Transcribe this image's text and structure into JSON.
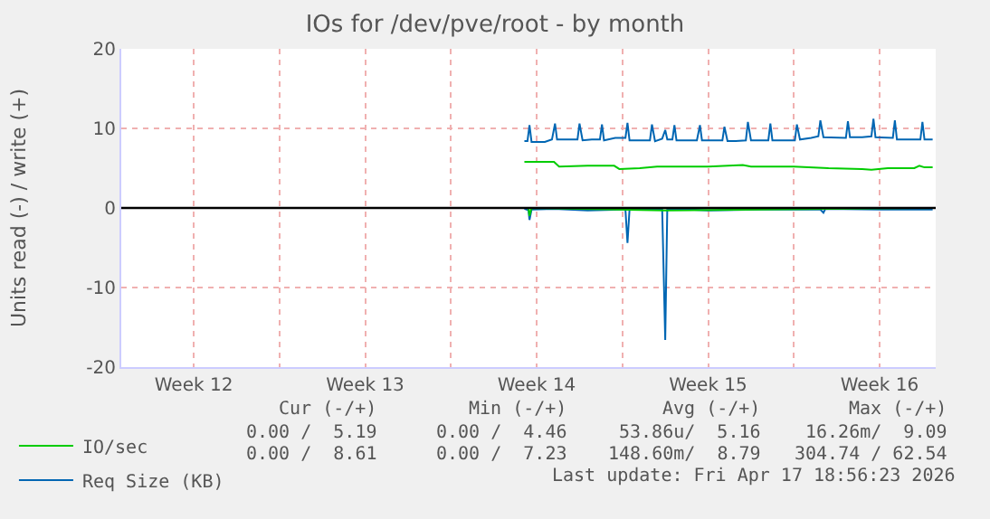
{
  "chart_data": {
    "type": "line",
    "title": "IOs for /dev/pve/root - by month",
    "ylabel": "Units read (-) / write (+)",
    "xlim": [
      "2026-03-16T13:00",
      "2026-04-18T19:00"
    ],
    "xticks": [
      {
        "value": "2026-03-19T12:00",
        "label": "Week 12"
      },
      {
        "value": "2026-03-23",
        "label": null
      },
      {
        "value": "2026-03-26T12:00",
        "label": "Week 13"
      },
      {
        "value": "2026-03-30",
        "label": null
      },
      {
        "value": "2026-04-02T12:00",
        "label": "Week 14"
      },
      {
        "value": "2026-04-06",
        "label": null
      },
      {
        "value": "2026-04-09T12:00",
        "label": "Week 15"
      },
      {
        "value": "2026-04-13",
        "label": null
      },
      {
        "value": "2026-04-16T12:00",
        "label": "Week 16"
      }
    ],
    "ylim": [
      -20,
      20
    ],
    "yticks": [
      -20,
      -10,
      0,
      10,
      20
    ],
    "grid": true,
    "legend": "bottom left",
    "marker": "none",
    "line_style": "solid",
    "ref_lines": [
      {
        "axis": "y",
        "value": 0,
        "color": "#000000"
      }
    ],
    "series": [
      {
        "name": "IO/sec",
        "color": "#00cc00",
        "x": [
          "2026-04-02T00:00",
          "2026-04-03T05:00",
          "2026-04-03T10:00",
          "2026-04-04T14:00",
          "2026-04-05T16:00",
          "2026-04-05T21:00",
          "2026-04-06T17:00",
          "2026-04-07T10:00",
          "2026-04-09T12:00",
          "2026-04-10T22:00",
          "2026-04-11T06:00",
          "2026-04-13T00:00",
          "2026-04-14T10:00",
          "2026-04-15T19:00",
          "2026-04-16T04:00",
          "2026-04-16T20:00",
          "2026-04-17T22:00",
          "2026-04-18T03:00",
          "2026-04-18T08:00",
          "2026-04-18T16:00"
        ],
        "values": [
          5.8,
          5.8,
          5.2,
          5.3,
          5.3,
          4.9,
          5.0,
          5.2,
          5.2,
          5.4,
          5.2,
          5.2,
          5.0,
          4.9,
          4.8,
          5.0,
          5.0,
          5.3,
          5.1,
          5.1
        ]
      },
      {
        "color": "#00cc00",
        "x": [
          "2026-04-02T00:00",
          "2026-04-02T04:00",
          "2026-04-02T05:00",
          "2026-04-02T07:00",
          "2026-04-07T18:00",
          "2026-04-18T16:00"
        ],
        "values": [
          0,
          0,
          -1.0,
          0,
          -0.3,
          0
        ]
      },
      {
        "name": "Req Size (KB)",
        "color": "#0066b3",
        "x": [
          "2026-04-02T00:00",
          "2026-04-02T03:00",
          "2026-04-02T05:00",
          "2026-04-02T07:00",
          "2026-04-02T20:00",
          "2026-04-03T03:00",
          "2026-04-03T06:00",
          "2026-04-03T08:00",
          "2026-04-04T04:00",
          "2026-04-04T06:00",
          "2026-04-04T09:00",
          "2026-04-04T18:00",
          "2026-04-05T02:00",
          "2026-04-05T04:00",
          "2026-04-05T06:00",
          "2026-04-05T17:00",
          "2026-04-06T03:00",
          "2026-04-06T05:00",
          "2026-04-06T07:00",
          "2026-04-07T03:00",
          "2026-04-07T05:00",
          "2026-04-07T08:00",
          "2026-04-07T15:00",
          "2026-04-07T18:00",
          "2026-04-07T20:00",
          "2026-04-08T01:00",
          "2026-04-08T03:00",
          "2026-04-08T05:00",
          "2026-04-09T01:00",
          "2026-04-09T04:00",
          "2026-04-09T06:00",
          "2026-04-10T02:00",
          "2026-04-10T04:00",
          "2026-04-10T07:00",
          "2026-04-10T15:00",
          "2026-04-11T01:00",
          "2026-04-11T03:00",
          "2026-04-11T06:00",
          "2026-04-11T23:00",
          "2026-04-12T01:00",
          "2026-04-12T03:00",
          "2026-04-13T01:00",
          "2026-04-13T03:00",
          "2026-04-13T06:00",
          "2026-04-13T17:00",
          "2026-04-14T00:00",
          "2026-04-14T02:00",
          "2026-04-14T05:00",
          "2026-04-15T03:00",
          "2026-04-15T05:00",
          "2026-04-15T07:00",
          "2026-04-15T19:00",
          "2026-04-16T04:00",
          "2026-04-16T06:00",
          "2026-04-16T08:00",
          "2026-04-17T01:00",
          "2026-04-17T03:00",
          "2026-04-17T05:00",
          "2026-04-18T04:00",
          "2026-04-18T06:00",
          "2026-04-18T08:00",
          "2026-04-18T16:00"
        ],
        "values": [
          8.4,
          8.4,
          10.4,
          8.3,
          8.3,
          8.6,
          10.6,
          8.6,
          8.6,
          10.6,
          8.5,
          8.6,
          8.6,
          10.5,
          8.5,
          8.8,
          8.8,
          10.7,
          8.5,
          8.5,
          10.5,
          8.4,
          8.7,
          9.8,
          8.6,
          8.6,
          10.4,
          8.5,
          8.5,
          10.4,
          8.5,
          8.5,
          10.2,
          8.4,
          8.4,
          8.5,
          10.8,
          8.5,
          8.5,
          10.6,
          8.5,
          8.5,
          10.5,
          8.6,
          8.8,
          9.0,
          11.0,
          8.9,
          8.8,
          10.9,
          8.9,
          8.9,
          9.0,
          11.2,
          8.9,
          8.8,
          11.0,
          8.6,
          8.6,
          10.8,
          8.6,
          8.6
        ]
      },
      {
        "color": "#0066b3",
        "x": [
          "2026-04-02T00:00",
          "2026-04-02T04:00",
          "2026-04-02T05:00",
          "2026-04-02T07:00",
          "2026-04-03T05:00",
          "2026-04-04T14:00",
          "2026-04-06T00:00",
          "2026-04-06T03:00",
          "2026-04-06T05:00",
          "2026-04-06T07:00",
          "2026-04-07T13:00",
          "2026-04-07T15:00",
          "2026-04-07T18:00",
          "2026-04-07T20:00",
          "2026-04-09T12:00",
          "2026-04-11T14:00",
          "2026-04-14T02:00",
          "2026-04-14T05:00",
          "2026-04-14T07:00",
          "2026-04-16T12:00",
          "2026-04-18T16:00"
        ],
        "values": [
          -0.1,
          -0.3,
          -1.5,
          -0.2,
          -0.1,
          -0.3,
          -0.2,
          -0.2,
          -4.4,
          -0.2,
          -0.1,
          -0.1,
          -16.6,
          -0.1,
          -0.3,
          -0.2,
          -0.2,
          -0.6,
          -0.1,
          -0.2,
          -0.2
        ]
      }
    ],
    "annotations": [
      "Cur (-/+)",
      "Min (-/+)",
      "Avg (-/+)",
      "Max (-/+)",
      "0.00 /  5.19",
      "0.00 /  4.46",
      "53.86u/  5.16",
      "16.26m/  9.09",
      "0.00 /  8.61",
      "0.00 /  7.23",
      "148.60m/  8.79",
      "304.74 / 62.54",
      "Last update: Fri Apr 17 18:56:23 2026"
    ]
  }
}
